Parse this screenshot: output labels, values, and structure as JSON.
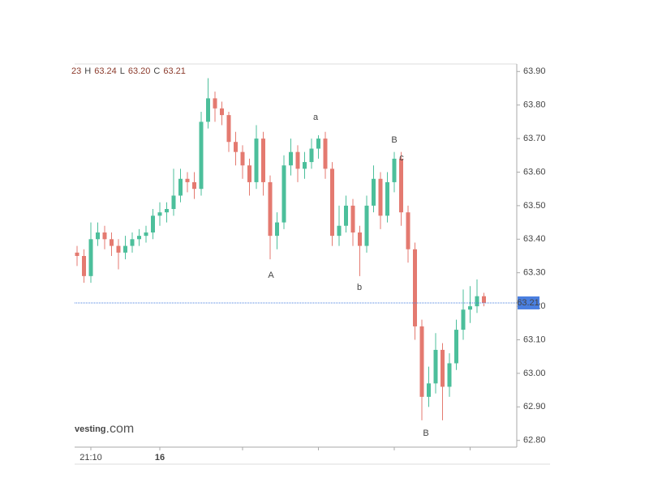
{
  "chart_data": {
    "type": "candlestick",
    "ohlc_header": [
      "23",
      "H",
      "63.24",
      "L",
      "63.20",
      "C",
      "63.21"
    ],
    "logo": [
      "vesting",
      ".com"
    ],
    "annotations": [
      "A",
      "a",
      "b",
      "B",
      "c",
      "B"
    ],
    "categories": [
      null,
      null,
      "21:10",
      null,
      null,
      null,
      null,
      null,
      null,
      null,
      null,
      null,
      "16",
      null,
      null,
      null,
      null,
      null,
      null,
      null,
      null,
      null,
      null,
      null,
      null,
      null,
      null,
      null,
      null,
      null,
      null,
      null,
      null,
      null,
      null,
      null,
      null,
      null,
      null,
      null,
      null,
      null,
      null,
      null,
      null,
      null,
      null,
      null,
      null,
      null,
      null,
      null,
      null,
      null,
      null,
      null,
      null,
      null,
      null,
      null
    ],
    "open": [
      63.36,
      63.35,
      63.29,
      63.4,
      63.42,
      63.4,
      63.38,
      63.36,
      63.38,
      63.4,
      63.41,
      63.42,
      63.47,
      63.48,
      63.49,
      63.53,
      63.58,
      63.57,
      63.55,
      63.75,
      63.82,
      63.79,
      63.77,
      63.69,
      63.66,
      63.62,
      63.57,
      63.7,
      63.57,
      63.41,
      63.45,
      63.62,
      63.66,
      63.61,
      63.63,
      63.67,
      63.7,
      63.61,
      63.41,
      63.44,
      63.5,
      63.42,
      63.38,
      63.5,
      63.58,
      63.47,
      63.57,
      63.64,
      63.48,
      63.37,
      63.14,
      62.93,
      62.97,
      63.07,
      62.96,
      63.03,
      63.13,
      63.19,
      63.2,
      63.23
    ],
    "high": [
      63.38,
      63.37,
      63.45,
      63.45,
      63.44,
      63.42,
      63.4,
      63.41,
      63.42,
      63.43,
      63.44,
      63.49,
      63.51,
      63.51,
      63.61,
      63.61,
      63.6,
      63.6,
      63.78,
      63.88,
      63.84,
      63.81,
      63.78,
      63.72,
      63.68,
      63.64,
      63.74,
      63.72,
      63.59,
      63.48,
      63.65,
      63.7,
      63.68,
      63.66,
      63.7,
      63.71,
      63.72,
      63.63,
      63.5,
      63.53,
      63.52,
      63.44,
      63.53,
      63.62,
      63.6,
      63.6,
      63.66,
      63.66,
      63.5,
      63.39,
      63.16,
      63.02,
      63.12,
      63.09,
      63.06,
      63.16,
      63.25,
      63.26,
      63.28,
      63.24
    ],
    "low": [
      63.32,
      63.27,
      63.27,
      63.38,
      63.37,
      63.35,
      63.31,
      63.34,
      63.36,
      63.38,
      63.39,
      63.4,
      63.44,
      63.45,
      63.47,
      63.51,
      63.54,
      63.52,
      63.53,
      63.73,
      63.75,
      63.74,
      63.66,
      63.62,
      63.58,
      63.53,
      63.55,
      63.53,
      63.34,
      63.37,
      63.43,
      63.59,
      63.57,
      63.58,
      63.61,
      63.64,
      63.58,
      63.38,
      63.38,
      63.42,
      63.38,
      63.29,
      63.36,
      63.48,
      63.43,
      63.45,
      63.54,
      63.44,
      63.33,
      63.1,
      62.86,
      62.9,
      62.94,
      62.86,
      62.93,
      63.01,
      63.1,
      63.15,
      63.18,
      63.2
    ],
    "close": [
      63.35,
      63.29,
      63.4,
      63.42,
      63.4,
      63.38,
      63.36,
      63.38,
      63.4,
      63.41,
      63.42,
      63.47,
      63.48,
      63.49,
      63.53,
      63.58,
      63.57,
      63.55,
      63.75,
      63.82,
      63.79,
      63.77,
      63.69,
      63.66,
      63.62,
      63.57,
      63.7,
      63.57,
      63.41,
      63.45,
      63.62,
      63.66,
      63.61,
      63.63,
      63.67,
      63.7,
      63.61,
      63.41,
      63.44,
      63.5,
      63.42,
      63.38,
      63.5,
      63.58,
      63.47,
      63.57,
      63.64,
      63.48,
      63.37,
      63.14,
      62.93,
      62.97,
      63.07,
      62.96,
      63.03,
      63.13,
      63.19,
      63.2,
      63.23,
      63.21
    ],
    "up_color": "#4cbf9b",
    "down_color": "#e47a70",
    "last_price": {
      "value": 63.21,
      "label": "63.21"
    },
    "last_price_color": "#4a7fe0",
    "ylim": [
      62.78,
      63.92
    ],
    "yticks": [
      {
        "value": 62.8,
        "label": "62.80"
      },
      {
        "value": 62.9,
        "label": "62.90"
      },
      {
        "value": 63.0,
        "label": "63.00"
      },
      {
        "value": 63.1,
        "label": "63.10"
      },
      {
        "value": 63.2,
        "label": "63.20"
      },
      {
        "value": 63.3,
        "label": "63.30"
      },
      {
        "value": 63.4,
        "label": "63.40"
      },
      {
        "value": 63.5,
        "label": "63.50"
      },
      {
        "value": 63.6,
        "label": "63.60"
      },
      {
        "value": 63.7,
        "label": "63.70"
      },
      {
        "value": 63.8,
        "label": "63.80"
      },
      {
        "value": 63.9,
        "label": "63.90"
      }
    ]
  }
}
